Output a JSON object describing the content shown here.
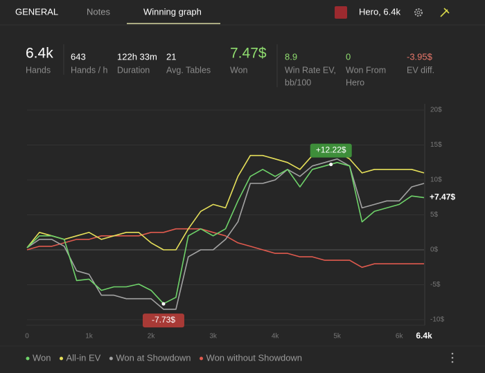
{
  "tabs": [
    "GENERAL",
    "Notes",
    "Winning graph"
  ],
  "hero": "Hero, 6.4k",
  "stats": [
    {
      "value": "6.4k",
      "label": "Hands",
      "big": true,
      "color": "#ffffff"
    },
    {
      "value": "643",
      "label": "Hands / h",
      "color": "#ffffff"
    },
    {
      "value": "122h 33m",
      "label": "Duration",
      "color": "#ffffff"
    },
    {
      "value": "21",
      "label": "Avg. Tables",
      "color": "#ffffff"
    },
    {
      "value": "7.47$",
      "label": "Won",
      "big": true,
      "color": "#8fdc6f"
    },
    {
      "value": "8.9",
      "label": "Win Rate EV,",
      "label2": "bb/100",
      "color": "#8fdc6f"
    },
    {
      "value": "0",
      "label": "Won From",
      "label2": "Hero",
      "color": "#8fdc6f"
    },
    {
      "value": "-3.95$",
      "label": "EV diff.",
      "color": "#e8776a"
    }
  ],
  "chart_data": {
    "type": "line",
    "x": [
      0,
      200,
      400,
      600,
      800,
      1000,
      1200,
      1400,
      1600,
      1800,
      2000,
      2200,
      2400,
      2600,
      2800,
      3000,
      3200,
      3400,
      3600,
      3800,
      4000,
      4200,
      4400,
      4600,
      4800,
      5000,
      5200,
      5400,
      5600,
      5800,
      6000,
      6200,
      6400
    ],
    "series": [
      {
        "name": "Won",
        "color": "#6fd36a",
        "values": [
          0.3,
          2,
          2,
          1.5,
          -4.4,
          -4.2,
          -5.8,
          -5.3,
          -5.3,
          -4.9,
          -5.8,
          -7.7,
          -6.8,
          2,
          3,
          2,
          3,
          7,
          10.5,
          11.5,
          10.5,
          11.5,
          9,
          11.5,
          12,
          12.5,
          12,
          4,
          5.5,
          6,
          6.5,
          7.7,
          7.47
        ]
      },
      {
        "name": "All-in EV",
        "color": "#e6e05a",
        "values": [
          0.3,
          2.5,
          2,
          1.5,
          2,
          2.5,
          1.5,
          2,
          2.5,
          2.5,
          1,
          0,
          0,
          3,
          5.5,
          6.5,
          6,
          10.5,
          13.5,
          13.5,
          13,
          12.5,
          11.5,
          13.5,
          14,
          14,
          13,
          11,
          11.5,
          11.5,
          11.5,
          11.5,
          11
        ]
      },
      {
        "name": "Won at Showdown",
        "color": "#a3a3a3",
        "values": [
          0.3,
          1.5,
          1.5,
          0.5,
          -3,
          -3.5,
          -6.5,
          -6.5,
          -7,
          -7,
          -7,
          -8.5,
          -8.5,
          -1,
          0,
          0,
          1.5,
          4,
          9.5,
          9.5,
          10,
          11.5,
          10.5,
          12,
          12.5,
          13,
          12,
          6,
          6.5,
          7,
          7,
          9,
          9.5
        ]
      },
      {
        "name": "Won without Showdown",
        "color": "#e05a4e",
        "values": [
          0,
          0.5,
          0.5,
          1,
          1.5,
          1.5,
          2,
          2,
          2,
          2,
          2.5,
          2.5,
          3,
          3,
          3,
          2.5,
          2,
          1,
          0.5,
          0,
          -0.5,
          -0.5,
          -1,
          -1,
          -1.5,
          -1.5,
          -1.5,
          -2.5,
          -2,
          -2,
          -2,
          -2,
          -2
        ]
      }
    ],
    "xlim": [
      0,
      6400
    ],
    "xticks": [
      0,
      {
        "value": 1000,
        "label": "1k"
      },
      {
        "value": 2000,
        "label": "2k"
      },
      {
        "value": 3000,
        "label": "3k"
      },
      {
        "value": 4000,
        "label": "4k"
      },
      {
        "value": 5000,
        "label": "5k"
      },
      {
        "value": 6000,
        "label": "6k"
      },
      {
        "value": 6400,
        "label": "6.4k"
      }
    ],
    "ylim": [
      -10,
      20
    ],
    "yticks": [
      {
        "value": -10,
        "label": "-10$"
      },
      {
        "value": -5,
        "label": "-5$"
      },
      {
        "value": 0,
        "label": "0$"
      },
      {
        "value": 5,
        "label": "5$"
      },
      {
        "value": 10,
        "label": "10$"
      },
      {
        "value": 15,
        "label": "15$"
      },
      {
        "value": 20,
        "label": "20$"
      }
    ],
    "grid": true,
    "annotations": [
      {
        "x": 4900,
        "value": 12.22,
        "label": "+12.22$",
        "color": "#3e8e3a"
      },
      {
        "x": 2200,
        "value": -7.73,
        "label": "-7.73$",
        "color": "#a83a36"
      },
      {
        "x": 6400,
        "value": 7.47,
        "label": "+7.47$"
      }
    ]
  }
}
